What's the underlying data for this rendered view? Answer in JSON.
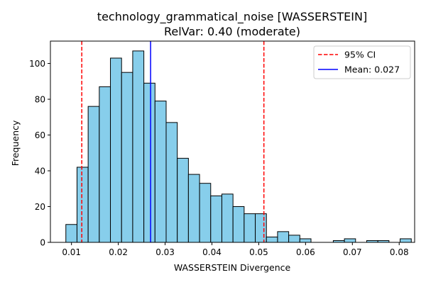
{
  "chart_data": {
    "type": "bar",
    "title": "technology_grammatical_noise [WASSERSTEIN]",
    "subtitle": "RelVar: 0.40 (moderate)",
    "xlabel": "WASSERSTEIN Divergence",
    "ylabel": "Frequency",
    "xlim": [
      0.0055,
      0.0833
    ],
    "ylim": [
      0,
      112.5
    ],
    "xticks": [
      0.01,
      0.02,
      0.03,
      0.04,
      0.05,
      0.06,
      0.07,
      0.08
    ],
    "xtick_labels": [
      "0.01",
      "0.02",
      "0.03",
      "0.04",
      "0.05",
      "0.06",
      "0.07",
      "0.08"
    ],
    "yticks": [
      0,
      20,
      40,
      60,
      80,
      100
    ],
    "ytick_labels": [
      "0",
      "20",
      "40",
      "60",
      "80",
      "100"
    ],
    "bin_start": 0.0088,
    "bin_width": 0.00238,
    "counts": [
      10,
      42,
      76,
      87,
      103,
      95,
      107,
      89,
      79,
      67,
      47,
      38,
      33,
      26,
      27,
      20,
      16,
      16,
      3,
      6,
      4,
      2,
      0,
      0,
      1,
      2,
      0,
      1,
      1,
      0,
      2
    ],
    "bar_color": "#87ceeb",
    "bar_edge_color": "#000000",
    "grid": false,
    "legend_position": "top-right",
    "reference_lines": [
      {
        "label": "95% CI",
        "x": 0.0122,
        "color": "#ff0000",
        "style": "dashed",
        "show_in_legend": true
      },
      {
        "label": "",
        "x": 0.0511,
        "color": "#ff0000",
        "style": "dashed",
        "show_in_legend": false
      },
      {
        "label": "Mean: 0.027",
        "x": 0.0269,
        "color": "#0000ff",
        "style": "solid",
        "show_in_legend": true
      }
    ]
  }
}
